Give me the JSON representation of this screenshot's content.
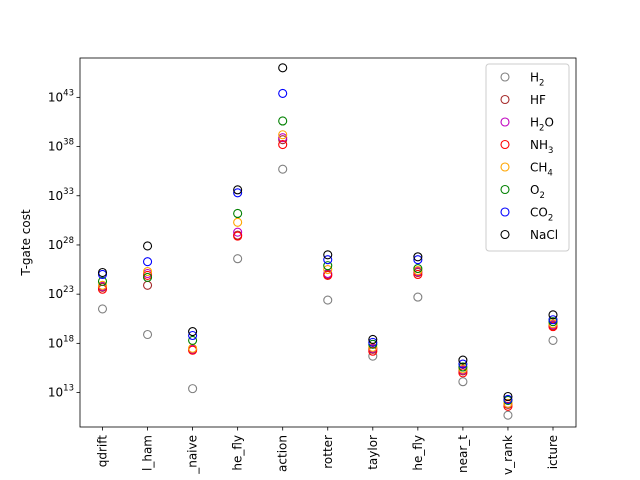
{
  "chart_data": {
    "type": "scatter",
    "title": "",
    "xlabel": "",
    "ylabel": "T-gate cost",
    "yscale": "log",
    "ylim_exp": [
      9.5,
      47.0
    ],
    "yticks": [
      {
        "exp": 13,
        "base": "10",
        "sup": "13"
      },
      {
        "exp": 18,
        "base": "10",
        "sup": "18"
      },
      {
        "exp": 23,
        "base": "10",
        "sup": "23"
      },
      {
        "exp": 28,
        "base": "10",
        "sup": "28"
      },
      {
        "exp": 33,
        "base": "10",
        "sup": "33"
      },
      {
        "exp": 38,
        "base": "10",
        "sup": "38"
      },
      {
        "exp": 43,
        "base": "10",
        "sup": "43"
      }
    ],
    "categories": [
      "qdrift",
      "l_ham",
      "_naive",
      "he_fly",
      "action",
      "rotter",
      "taylor",
      "he_fly",
      "near_t",
      "v_rank",
      "icture"
    ],
    "grid": false,
    "legend_position": "upper right",
    "series": [
      {
        "name": "H2",
        "label_base": "H",
        "label_sub": "2",
        "color": "#808080",
        "log10_values": [
          21.5,
          18.9,
          13.4,
          26.6,
          35.7,
          22.4,
          16.7,
          22.7,
          14.1,
          10.7,
          18.3
        ]
      },
      {
        "name": "HF",
        "label_base": "HF",
        "label_sub": "",
        "color": "#a52a2a",
        "log10_values": [
          23.7,
          23.9,
          17.4,
          29.0,
          38.7,
          25.0,
          17.4,
          25.2,
          15.2,
          11.8,
          19.8
        ]
      },
      {
        "name": "H2O",
        "label_base": "H",
        "label_sub": "2",
        "label_tail": "O",
        "color": "#bf00bf",
        "log10_values": [
          23.8,
          25.1,
          17.4,
          29.3,
          38.9,
          25.1,
          17.5,
          25.3,
          15.3,
          11.9,
          19.9
        ]
      },
      {
        "name": "NH3",
        "label_base": "NH",
        "label_sub": "3",
        "color": "#ff0000",
        "log10_values": [
          23.5,
          24.9,
          17.3,
          28.9,
          38.2,
          24.9,
          17.2,
          25.0,
          15.0,
          11.6,
          19.7
        ]
      },
      {
        "name": "CH4",
        "label_base": "CH",
        "label_sub": "4",
        "color": "#ffa500",
        "log10_values": [
          23.9,
          25.3,
          17.5,
          30.3,
          39.2,
          25.5,
          17.6,
          25.4,
          15.4,
          11.9,
          20.0
        ]
      },
      {
        "name": "O2",
        "label_base": "O",
        "label_sub": "2",
        "color": "#008000",
        "log10_values": [
          24.3,
          24.7,
          18.3,
          31.2,
          40.6,
          25.9,
          17.9,
          25.6,
          15.6,
          12.2,
          20.2
        ]
      },
      {
        "name": "CO2",
        "label_base": "CO",
        "label_sub": "2",
        "color": "#0000ff",
        "log10_values": [
          25.0,
          26.3,
          18.8,
          33.3,
          43.4,
          26.5,
          18.1,
          26.5,
          15.9,
          12.3,
          20.4
        ]
      },
      {
        "name": "NaCl",
        "label_base": "NaCl",
        "label_sub": "",
        "color": "#000000",
        "log10_values": [
          25.2,
          27.9,
          19.2,
          33.6,
          46.0,
          27.0,
          18.4,
          26.8,
          16.3,
          12.6,
          20.9
        ]
      }
    ]
  }
}
